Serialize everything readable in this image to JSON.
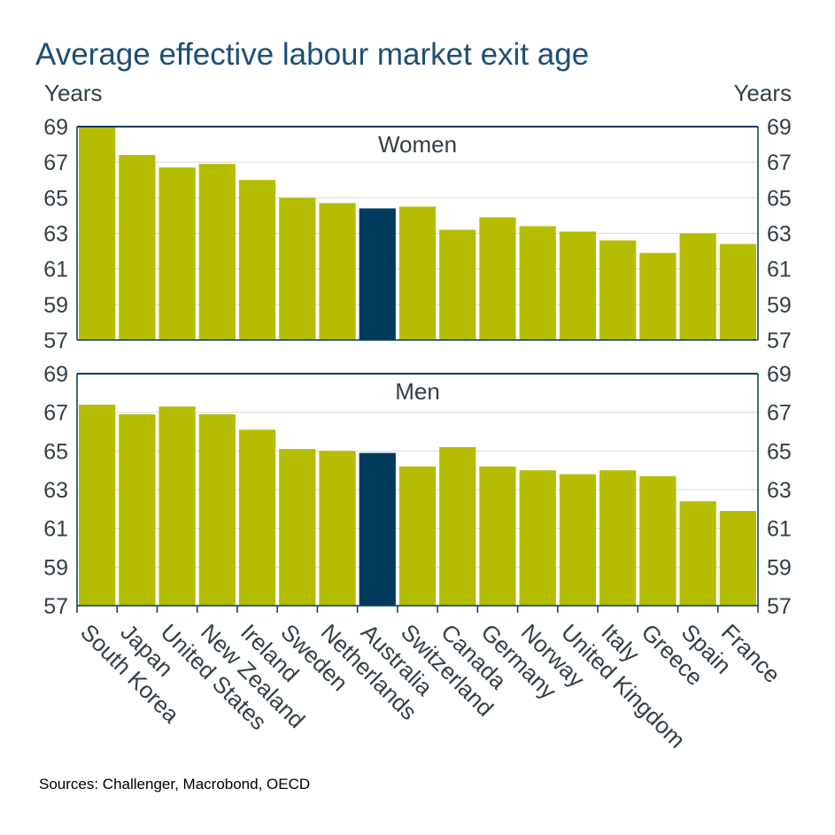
{
  "title": "Average effective labour market exit age",
  "source": "Sources: Challenger, Macrobond, OECD",
  "colors": {
    "bar": "#b5bd00",
    "highlight": "#003a5d",
    "axis": "#003a5d",
    "grid": "#d9d9d9",
    "title": "#1d4f73"
  },
  "chart_data": [
    {
      "type": "bar",
      "title": "Women",
      "ylabel_left": "Years",
      "ylabel_right": "Years",
      "ylim": [
        57,
        69
      ],
      "yticks": [
        57,
        59,
        61,
        63,
        65,
        67,
        69
      ],
      "grid": true,
      "highlight": "Australia",
      "categories": [
        "South Korea",
        "Japan",
        "United States",
        "New Zealand",
        "Ireland",
        "Sweden",
        "Netherlands",
        "Australia",
        "Switzerland",
        "Canada",
        "Germany",
        "Norway",
        "United Kingdom",
        "Italy",
        "Greece",
        "Spain",
        "France"
      ],
      "values": [
        69.0,
        67.4,
        66.7,
        66.9,
        66.0,
        65.0,
        64.7,
        64.4,
        64.5,
        63.2,
        63.9,
        63.4,
        63.1,
        62.6,
        61.9,
        63.0,
        62.4
      ]
    },
    {
      "type": "bar",
      "title": "Men",
      "ylim": [
        57,
        69
      ],
      "yticks": [
        57,
        59,
        61,
        63,
        65,
        67,
        69
      ],
      "grid": true,
      "highlight": "Australia",
      "categories": [
        "South Korea",
        "Japan",
        "United States",
        "New Zealand",
        "Ireland",
        "Sweden",
        "Netherlands",
        "Australia",
        "Switzerland",
        "Canada",
        "Germany",
        "Norway",
        "United Kingdom",
        "Italy",
        "Greece",
        "Spain",
        "France"
      ],
      "values": [
        67.4,
        66.9,
        67.3,
        66.9,
        66.1,
        65.1,
        65.0,
        64.9,
        64.2,
        65.2,
        64.2,
        64.0,
        63.8,
        64.0,
        63.7,
        62.4,
        61.9
      ]
    }
  ]
}
